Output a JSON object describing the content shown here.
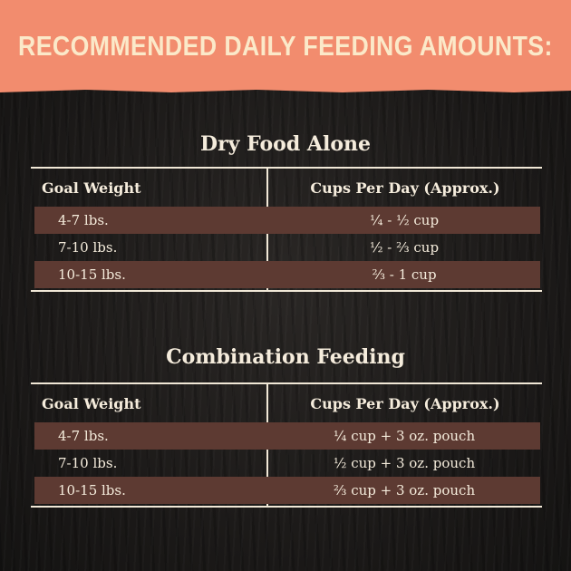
{
  "header": {
    "title": "RECOMMENDED DAILY FEEDING AMOUNTS:"
  },
  "dry_food": {
    "title": "Dry Food Alone",
    "columns": [
      "Goal Weight",
      "Cups Per Day (Approx.)"
    ],
    "rows": [
      {
        "weight": "4-7 lbs.",
        "amount": "¼ - ½ cup"
      },
      {
        "weight": "7-10 lbs.",
        "amount": "½ - ⅔ cup"
      },
      {
        "weight": "10-15 lbs.",
        "amount": "⅔ - 1 cup"
      }
    ]
  },
  "combination": {
    "title": "Combination Feeding",
    "columns": [
      "Goal Weight",
      "Cups Per Day (Approx.)"
    ],
    "rows": [
      {
        "weight": "4-7 lbs.",
        "amount": "¼ cup + 3 oz. pouch"
      },
      {
        "weight": "7-10 lbs.",
        "amount": "½ cup + 3 oz. pouch"
      },
      {
        "weight": "10-15 lbs.",
        "amount": "⅔ cup + 3 oz. pouch"
      }
    ]
  },
  "colors": {
    "header_bg": "#f28c6e",
    "header_text": "#fbe9c9",
    "row_shade": "#5d3a32",
    "text": "#f5ecdc"
  }
}
